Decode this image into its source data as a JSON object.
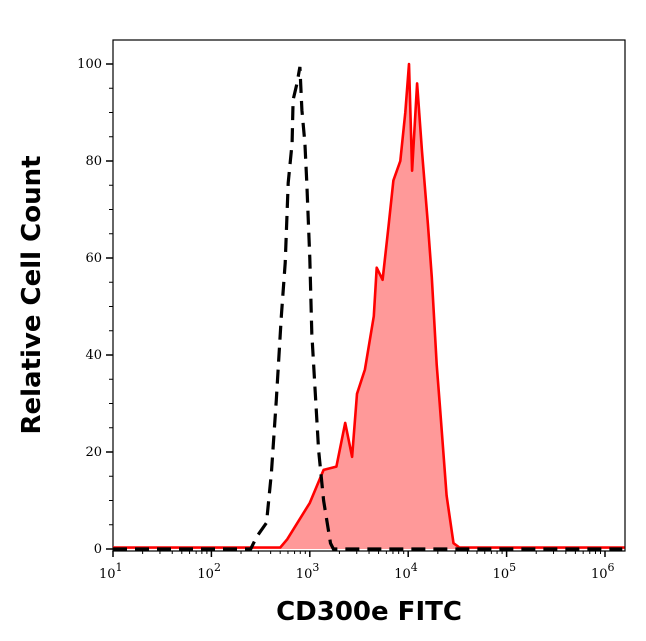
{
  "chart_data": {
    "type": "area",
    "title": "",
    "xlabel": "CD300e FITC",
    "ylabel": "Relative Cell Count",
    "x_scale": "log",
    "xlim": [
      10,
      1600000
    ],
    "ylim": [
      0,
      105
    ],
    "x_ticks": [
      {
        "base": "10",
        "exp": "1",
        "value": 10
      },
      {
        "base": "10",
        "exp": "2",
        "value": 100
      },
      {
        "base": "10",
        "exp": "3",
        "value": 1000
      },
      {
        "base": "10",
        "exp": "4",
        "value": 10000
      },
      {
        "base": "10",
        "exp": "5",
        "value": 100000
      },
      {
        "base": "10",
        "exp": "6",
        "value": 1000000
      }
    ],
    "y_ticks": [
      "0",
      "20",
      "40",
      "60",
      "80",
      "100"
    ],
    "grid": false,
    "legend": "none",
    "series": [
      {
        "style": "dashed line, no fill",
        "color": "#000000",
        "points": [
          [
            10,
            0
          ],
          [
            251,
            0
          ],
          [
            288,
            2.5
          ],
          [
            363,
            5.4
          ],
          [
            407,
            15.7
          ],
          [
            457,
            30.7
          ],
          [
            513,
            47.9
          ],
          [
            562,
            59
          ],
          [
            603,
            75.5
          ],
          [
            661,
            83.7
          ],
          [
            676,
            92.6
          ],
          [
            741,
            96
          ],
          [
            794,
            99.4
          ],
          [
            832,
            90.5
          ],
          [
            891,
            83.7
          ],
          [
            933,
            75.5
          ],
          [
            1000,
            60
          ],
          [
            1047,
            44.5
          ],
          [
            1122,
            34.2
          ],
          [
            1230,
            20.4
          ],
          [
            1380,
            10
          ],
          [
            1622,
            1.2
          ],
          [
            1738,
            0
          ],
          [
            1500000,
            0
          ]
        ]
      },
      {
        "style": "solid line with filled area",
        "color": "#ff0000",
        "fill": "#ff9999",
        "points": [
          [
            10,
            0.3
          ],
          [
            501,
            0.3
          ],
          [
            589,
            2
          ],
          [
            1000,
            9.5
          ],
          [
            1380,
            16.3
          ],
          [
            1862,
            17
          ],
          [
            2291,
            26
          ],
          [
            2692,
            19
          ],
          [
            3020,
            32
          ],
          [
            3631,
            37
          ],
          [
            4467,
            48
          ],
          [
            4786,
            58
          ],
          [
            5495,
            55.5
          ],
          [
            6310,
            66.5
          ],
          [
            7079,
            76
          ],
          [
            8318,
            80
          ],
          [
            9333,
            90
          ],
          [
            10200,
            100
          ],
          [
            10965,
            78
          ],
          [
            12303,
            96
          ],
          [
            13804,
            82
          ],
          [
            15849,
            67
          ],
          [
            17378,
            56
          ],
          [
            19498,
            38
          ],
          [
            20893,
            30
          ],
          [
            24547,
            11
          ],
          [
            28840,
            1.2
          ],
          [
            33113,
            0.3
          ],
          [
            1580000,
            0.3
          ]
        ]
      }
    ]
  }
}
